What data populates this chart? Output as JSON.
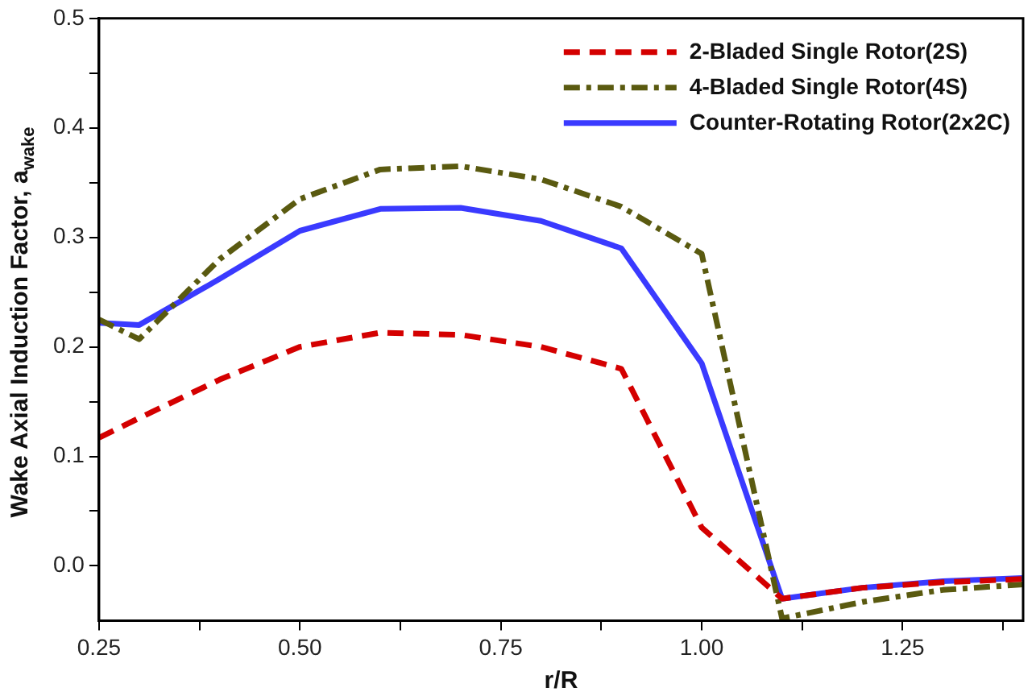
{
  "chart_data": {
    "type": "line",
    "xlabel": "r/R",
    "ylabel": "Wake Axial Induction Factor, a$_{wake}$",
    "x": [
      0.25,
      0.3,
      0.4,
      0.5,
      0.6,
      0.7,
      0.8,
      0.9,
      1.0,
      1.1,
      1.2,
      1.3,
      1.4
    ],
    "xlim": [
      0.25,
      1.4
    ],
    "xticks": [
      0.25,
      {
        "value": 0.375,
        "label": null
      },
      "0.50",
      {
        "value": 0.625,
        "label": null
      },
      0.75,
      {
        "value": 0.875,
        "label": null
      },
      "1.00",
      {
        "value": 1.125,
        "label": null
      },
      1.25,
      {
        "value": 1.375,
        "label": null
      }
    ],
    "ylim": [
      -0.05,
      0.5
    ],
    "yticks": [
      {
        "value": 0.0,
        "label": "0.0"
      },
      {
        "value": 0.05,
        "label": null
      },
      0.1,
      {
        "value": 0.15,
        "label": null
      },
      0.2,
      {
        "value": 0.25,
        "label": null
      },
      0.3,
      {
        "value": 0.35,
        "label": null
      },
      0.4,
      {
        "value": 0.45,
        "label": null
      },
      0.5
    ],
    "grid": false,
    "legend": "top right",
    "marker": "none",
    "series": [
      {
        "name": "2-Bladed Single Rotor(2S)",
        "color": "#d40000",
        "line_style": "dashed",
        "values": [
          0.117,
          0.135,
          0.17,
          0.2,
          0.213,
          0.211,
          0.2,
          0.18,
          0.035,
          -0.03,
          -0.02,
          -0.015,
          -0.012
        ]
      },
      {
        "name": "4-Bladed Single Rotor(4S)",
        "color": "#5a5a10",
        "line_style": "dashdot",
        "values": [
          0.225,
          0.207,
          0.28,
          0.335,
          0.362,
          0.365,
          0.353,
          0.328,
          0.285,
          -0.048,
          -0.033,
          -0.022,
          -0.017
        ]
      },
      {
        "name": "Counter-Rotating Rotor(2x2C)",
        "color": "#3a3aff",
        "line_style": "solid",
        "values": [
          0.222,
          0.22,
          0.262,
          0.306,
          0.326,
          0.327,
          0.315,
          0.29,
          0.185,
          -0.03,
          -0.02,
          -0.014,
          -0.011
        ]
      }
    ]
  }
}
